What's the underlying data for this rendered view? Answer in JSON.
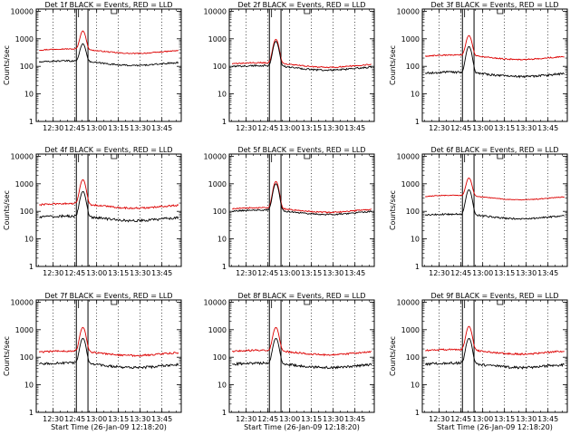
{
  "figure": {
    "background": "#ffffff",
    "colors": {
      "events": "#000000",
      "lld": "#dd0000",
      "axes": "#000000"
    }
  },
  "chart_data": [
    {
      "type": "line",
      "title": "Det 1f BLACK = Events, RED = LLD",
      "ylabel": "Counts/sec",
      "xlabel": "",
      "yscale": "log",
      "ylim": [
        1,
        12000
      ],
      "yticks": [
        "10000",
        "1000",
        "100",
        "10",
        "1"
      ],
      "xticks": [
        "12:30",
        "12:45",
        "13:00",
        "13:15",
        "13:30",
        "13:45"
      ],
      "series": [
        {
          "color": "#dd0000",
          "base": 380,
          "peak": 1900,
          "noise": 0.04
        },
        {
          "color": "#000000",
          "base": 140,
          "peak": 650,
          "noise": 0.06
        }
      ]
    },
    {
      "type": "line",
      "title": "Det 2f BLACK = Events, RED = LLD",
      "ylabel": "",
      "xlabel": "",
      "yscale": "log",
      "ylim": [
        1,
        12000
      ],
      "yticks": [
        "10000",
        "1000",
        "100",
        "10",
        "1"
      ],
      "xticks": [
        "12:30",
        "12:45",
        "13:00",
        "13:15",
        "13:30",
        "13:45"
      ],
      "series": [
        {
          "color": "#dd0000",
          "base": 120,
          "peak": 950,
          "noise": 0.05
        },
        {
          "color": "#000000",
          "base": 95,
          "peak": 800,
          "noise": 0.07
        }
      ]
    },
    {
      "type": "line",
      "title": "Det 3f BLACK = Events, RED = LLD",
      "ylabel": "Counts/sec",
      "xlabel": "",
      "yscale": "log",
      "ylim": [
        1,
        12000
      ],
      "yticks": [
        "10000",
        "1000",
        "100",
        "10",
        "1"
      ],
      "xticks": [
        "12:30",
        "12:45",
        "13:00",
        "13:15",
        "13:30",
        "13:45"
      ],
      "series": [
        {
          "color": "#dd0000",
          "base": 230,
          "peak": 1300,
          "noise": 0.05
        },
        {
          "color": "#000000",
          "base": 55,
          "peak": 520,
          "noise": 0.09
        }
      ]
    },
    {
      "type": "line",
      "title": "Det 4f BLACK = Events, RED = LLD",
      "ylabel": "Counts/sec",
      "xlabel": "",
      "yscale": "log",
      "ylim": [
        1,
        12000
      ],
      "yticks": [
        "10000",
        "1000",
        "100",
        "10",
        "1"
      ],
      "xticks": [
        "12:30",
        "12:45",
        "13:00",
        "13:15",
        "13:30",
        "13:45"
      ],
      "series": [
        {
          "color": "#dd0000",
          "base": 170,
          "peak": 1400,
          "noise": 0.07
        },
        {
          "color": "#000000",
          "base": 60,
          "peak": 520,
          "noise": 0.1
        }
      ]
    },
    {
      "type": "line",
      "title": "Det 5f BLACK = Events, RED = LLD",
      "ylabel": "",
      "xlabel": "",
      "yscale": "log",
      "ylim": [
        1,
        12000
      ],
      "yticks": [
        "10000",
        "1000",
        "100",
        "10",
        "1"
      ],
      "xticks": [
        "12:30",
        "12:45",
        "13:00",
        "13:15",
        "13:30",
        "13:45"
      ],
      "series": [
        {
          "color": "#dd0000",
          "base": 120,
          "peak": 1200,
          "noise": 0.05
        },
        {
          "color": "#000000",
          "base": 100,
          "peak": 1000,
          "noise": 0.06
        }
      ]
    },
    {
      "type": "line",
      "title": "Det 6f BLACK = Events, RED = LLD",
      "ylabel": "Counts/sec",
      "xlabel": "",
      "yscale": "log",
      "ylim": [
        1,
        12000
      ],
      "yticks": [
        "10000",
        "1000",
        "100",
        "10",
        "1"
      ],
      "xticks": [
        "12:30",
        "12:45",
        "13:00",
        "13:15",
        "13:30",
        "13:45"
      ],
      "series": [
        {
          "color": "#dd0000",
          "base": 340,
          "peak": 1600,
          "noise": 0.03
        },
        {
          "color": "#000000",
          "base": 70,
          "peak": 600,
          "noise": 0.07
        }
      ]
    },
    {
      "type": "line",
      "title": "Det 7f BLACK = Events, RED = LLD",
      "ylabel": "Counts/sec",
      "xlabel": "Start Time (26-Jan-09 12:18:20)",
      "yscale": "log",
      "ylim": [
        1,
        12000
      ],
      "yticks": [
        "10000",
        "1000",
        "100",
        "10",
        "1"
      ],
      "xticks": [
        "12:30",
        "12:45",
        "13:00",
        "13:15",
        "13:30",
        "13:45"
      ],
      "series": [
        {
          "color": "#dd0000",
          "base": 150,
          "peak": 1200,
          "noise": 0.07
        },
        {
          "color": "#000000",
          "base": 55,
          "peak": 480,
          "noise": 0.1
        }
      ]
    },
    {
      "type": "line",
      "title": "Det 8f BLACK = Events, RED = LLD",
      "ylabel": "",
      "xlabel": "Start Time (26-Jan-09 12:18:20)",
      "yscale": "log",
      "ylim": [
        1,
        12000
      ],
      "yticks": [
        "10000",
        "1000",
        "100",
        "10",
        "1"
      ],
      "xticks": [
        "12:30",
        "12:45",
        "13:00",
        "13:15",
        "13:30",
        "13:45"
      ],
      "series": [
        {
          "color": "#dd0000",
          "base": 160,
          "peak": 1200,
          "noise": 0.07
        },
        {
          "color": "#000000",
          "base": 55,
          "peak": 480,
          "noise": 0.1
        }
      ]
    },
    {
      "type": "line",
      "title": "Det 9f BLACK = Events, RED = LLD",
      "ylabel": "Counts/sec",
      "xlabel": "Start Time (26-Jan-09 12:18:20)",
      "yscale": "log",
      "ylim": [
        1,
        12000
      ],
      "yticks": [
        "10000",
        "1000",
        "100",
        "10",
        "1"
      ],
      "xticks": [
        "12:30",
        "12:45",
        "13:00",
        "13:15",
        "13:30",
        "13:45"
      ],
      "series": [
        {
          "color": "#dd0000",
          "base": 170,
          "peak": 1300,
          "noise": 0.07
        },
        {
          "color": "#000000",
          "base": 55,
          "peak": 480,
          "noise": 0.1
        }
      ]
    }
  ]
}
